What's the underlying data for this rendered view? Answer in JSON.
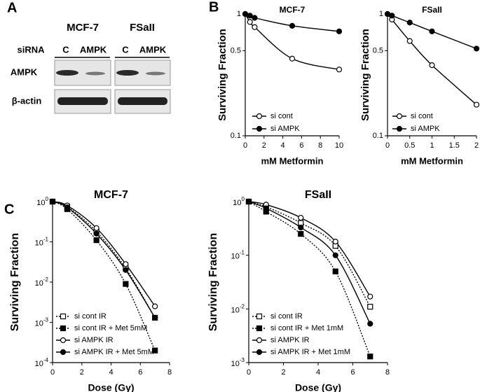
{
  "panels": {
    "a": "A",
    "b": "B",
    "c": "C"
  },
  "blot": {
    "cell_lines": [
      "MCF-7",
      "FSaII"
    ],
    "sirna_label": "siRNA",
    "lanes": [
      "C",
      "AMPK"
    ],
    "rows": [
      "AMPK",
      "β-actin"
    ]
  },
  "chart_data": [
    {
      "type": "line",
      "title": "MCF-7",
      "xlabel": "mM Metformin",
      "ylabel": "Surviving Fraction",
      "x": [
        0,
        0.5,
        1,
        5,
        10
      ],
      "xlim": [
        0,
        10
      ],
      "xticks": [
        0,
        2,
        4,
        6,
        8,
        10
      ],
      "ylim": [
        0.1,
        1
      ],
      "yticks": [
        0.1,
        0.5,
        1
      ],
      "log_y": true,
      "legend_position": "lower left",
      "series": [
        {
          "name": "si cont",
          "color": "#000000",
          "marker": "circle",
          "filled": false,
          "line_style": "solid",
          "values": [
            1,
            0.86,
            0.78,
            0.43,
            0.35
          ]
        },
        {
          "name": "si AMPK",
          "color": "#000000",
          "marker": "circle",
          "filled": true,
          "line_style": "solid",
          "values": [
            1,
            0.97,
            0.93,
            0.8,
            0.72
          ]
        }
      ]
    },
    {
      "type": "line",
      "title": "FSaII",
      "xlabel": "mM Metformin",
      "ylabel": "Surviving Fraction",
      "x": [
        0,
        0.1,
        0.5,
        1,
        2
      ],
      "xlim": [
        0,
        2
      ],
      "xticks": [
        0,
        0.5,
        1,
        1.5,
        2
      ],
      "ylim": [
        0.1,
        1
      ],
      "yticks": [
        0.1,
        0.5,
        1
      ],
      "log_y": true,
      "legend_position": "lower left",
      "series": [
        {
          "name": "si cont",
          "color": "#000000",
          "marker": "circle",
          "filled": false,
          "line_style": "solid",
          "values": [
            1,
            0.9,
            0.6,
            0.38,
            0.18
          ]
        },
        {
          "name": "si AMPK",
          "color": "#000000",
          "marker": "circle",
          "filled": true,
          "line_style": "solid",
          "values": [
            1,
            0.97,
            0.85,
            0.72,
            0.52
          ]
        }
      ]
    },
    {
      "type": "line",
      "title": "MCF-7",
      "xlabel": "Dose (Gy)",
      "ylabel": "Surviving Fraction",
      "x": [
        0,
        1,
        3,
        5,
        7
      ],
      "xlim": [
        0,
        8
      ],
      "xticks": [
        0,
        2,
        4,
        6,
        8
      ],
      "ylim": [
        0.0001,
        1
      ],
      "yticks": [
        {
          "value": 0.0001,
          "label": "10",
          "power": "-4"
        },
        {
          "value": 0.001,
          "label": "10",
          "power": "-3"
        },
        {
          "value": 0.01,
          "label": "10",
          "power": "-2"
        },
        {
          "value": 0.1,
          "label": "10",
          "power": "-1"
        },
        {
          "value": 1,
          "label": "10",
          "power": "0"
        }
      ],
      "log_y": true,
      "legend_position": "lower left",
      "series": [
        {
          "name": "si cont IR",
          "color": "#000000",
          "marker": "square",
          "filled": false,
          "line_style": "dotted",
          "values": [
            1,
            0.75,
            0.18,
            0.022,
            0.0013
          ]
        },
        {
          "name": "si cont IR + Met 5mM",
          "color": "#000000",
          "marker": "square",
          "filled": true,
          "line_style": "dotted",
          "values": [
            1,
            0.65,
            0.11,
            0.009,
            0.0002
          ]
        },
        {
          "name": "si AMPK IR",
          "color": "#000000",
          "marker": "circle",
          "filled": false,
          "line_style": "solid",
          "values": [
            1,
            0.8,
            0.22,
            0.028,
            0.0025
          ]
        },
        {
          "name": "si AMPK IR + Met 5mM",
          "color": "#000000",
          "marker": "circle",
          "filled": true,
          "line_style": "solid",
          "values": [
            1,
            0.72,
            0.16,
            0.02,
            0.0013
          ]
        }
      ]
    },
    {
      "type": "line",
      "title": "FSaII",
      "xlabel": "Dose (Gy)",
      "ylabel": "Surviving Fraction",
      "x": [
        0,
        1,
        3,
        5,
        7
      ],
      "xlim": [
        0,
        8
      ],
      "xticks": [
        0,
        2,
        4,
        6,
        8
      ],
      "ylim": [
        0.001,
        1
      ],
      "yticks": [
        {
          "value": 0.001,
          "label": "10",
          "power": "-3"
        },
        {
          "value": 0.01,
          "label": "10",
          "power": "-2"
        },
        {
          "value": 0.1,
          "label": "10",
          "power": "-1"
        },
        {
          "value": 1,
          "label": "10",
          "power": "0"
        }
      ],
      "log_y": true,
      "legend_position": "lower left",
      "series": [
        {
          "name": "si cont IR",
          "color": "#000000",
          "marker": "square",
          "filled": false,
          "line_style": "dotted",
          "values": [
            1,
            0.8,
            0.4,
            0.15,
            0.011
          ]
        },
        {
          "name": "si cont IR + Met 1mM",
          "color": "#000000",
          "marker": "square",
          "filled": true,
          "line_style": "dotted",
          "values": [
            1,
            0.65,
            0.25,
            0.05,
            0.0013
          ]
        },
        {
          "name": "si AMPK IR",
          "color": "#000000",
          "marker": "circle",
          "filled": false,
          "line_style": "solid",
          "values": [
            1,
            0.88,
            0.5,
            0.18,
            0.017
          ]
        },
        {
          "name": "si AMPK IR + Met 1mM",
          "color": "#000000",
          "marker": "circle",
          "filled": true,
          "line_style": "solid",
          "values": [
            1,
            0.75,
            0.33,
            0.1,
            0.0053
          ]
        }
      ]
    }
  ]
}
